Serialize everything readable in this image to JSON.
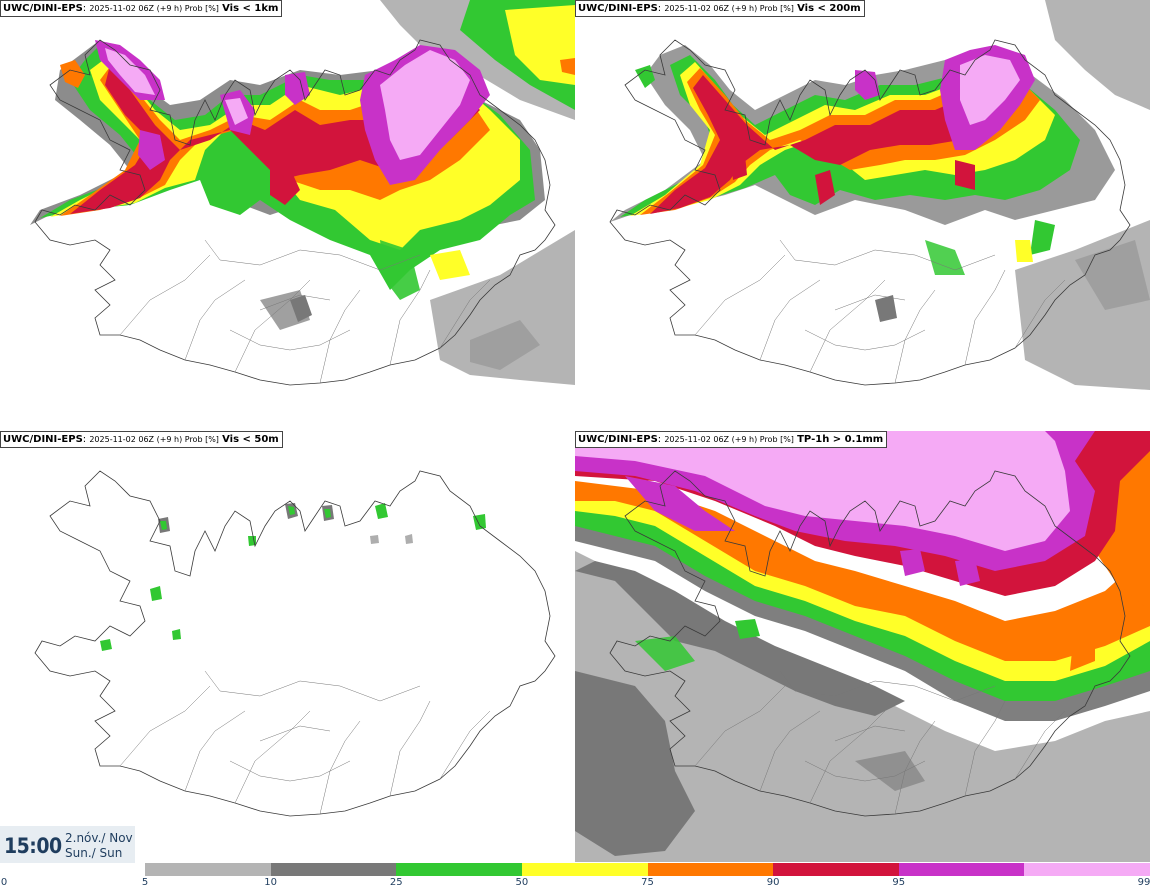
{
  "panels": [
    {
      "model": "UWC/DINI-EPS",
      "subtitle": "2025-11-02 06Z (+9 h) Prob [%]",
      "threshold": "Vis < 1km"
    },
    {
      "model": "UWC/DINI-EPS",
      "subtitle": "2025-11-02 06Z (+9 h) Prob [%]",
      "threshold": "Vis < 200m"
    },
    {
      "model": "UWC/DINI-EPS",
      "subtitle": "2025-11-02 06Z (+9 h) Prob [%]",
      "threshold": "Vis < 50m"
    },
    {
      "model": "UWC/DINI-EPS",
      "subtitle": "2025-11-02 06Z (+9 h) Prob [%]",
      "threshold": "TP-1h > 0.1mm"
    }
  ],
  "valid_time": {
    "time": "15:00",
    "date_line1": "2.nóv./ Nov",
    "date_line2": "Sun./ Sun"
  },
  "colorbar": {
    "ticks": [
      "0",
      "5",
      "10",
      "25",
      "50",
      "75",
      "90",
      "95",
      "99"
    ],
    "colors": [
      "#b4b4b4",
      "#787878",
      "#32c832",
      "#ffff28",
      "#ff7800",
      "#d2143c",
      "#c832c8",
      "#f5aaf5"
    ]
  },
  "legend_colors": {
    "5": "#b4b4b4",
    "10": "#787878",
    "25": "#32c832",
    "50": "#ffff28",
    "75": "#ff7800",
    "90": "#d2143c",
    "95": "#c832c8",
    "99": "#f5aaf5"
  }
}
